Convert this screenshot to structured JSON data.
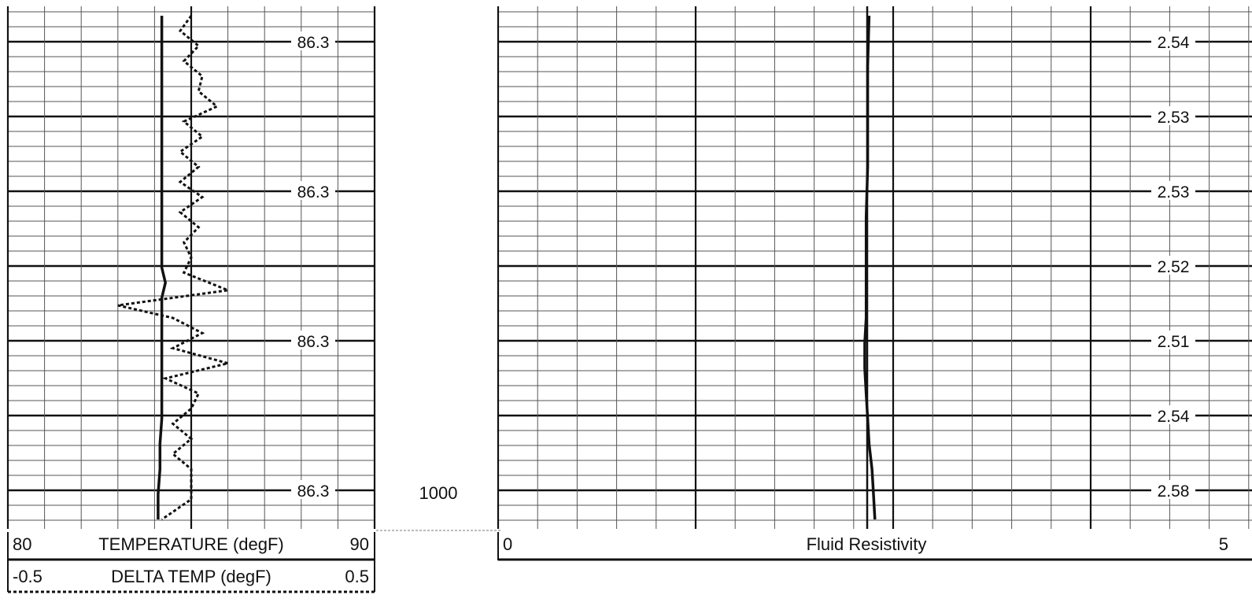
{
  "depth_label": "1000",
  "chart_data": [
    {
      "type": "line",
      "track": "left",
      "scales": [
        {
          "name": "TEMPERATURE (degF)",
          "min": 80,
          "max": 90,
          "line_style": "solid"
        },
        {
          "name": "DELTA TEMP (degF)",
          "min": -0.5,
          "max": 0.5,
          "line_style": "dotted"
        }
      ],
      "header": {
        "row1": {
          "left": "80",
          "label": "TEMPERATURE (degF)",
          "right": "90"
        },
        "row2": {
          "left": "-0.5",
          "label": "DELTA TEMP (degF)",
          "right": "0.5"
        }
      },
      "annotations": [
        "86.3",
        "86.3",
        "86.3",
        "86.3"
      ],
      "series": [
        {
          "name": "TEMPERATURE (degF)",
          "depth_fraction": [
            0,
            0.1,
            0.2,
            0.3,
            0.4,
            0.5,
            0.53,
            0.56,
            0.6,
            0.65,
            0.7,
            0.75,
            0.8,
            0.85,
            0.9,
            0.95,
            1
          ],
          "values": [
            86.3,
            86.3,
            86.3,
            86.3,
            86.3,
            86.3,
            86.4,
            86.3,
            86.3,
            86.3,
            86.3,
            86.3,
            86.3,
            86.25,
            86.25,
            86.2,
            86.2
          ]
        },
        {
          "name": "DELTA TEMP (degF)",
          "depth_fraction": [
            0,
            0.03,
            0.06,
            0.09,
            0.12,
            0.15,
            0.18,
            0.21,
            0.24,
            0.27,
            0.3,
            0.33,
            0.36,
            0.39,
            0.42,
            0.45,
            0.48,
            0.51,
            0.545,
            0.575,
            0.6,
            0.63,
            0.66,
            0.69,
            0.72,
            0.75,
            0.78,
            0.81,
            0.84,
            0.87,
            0.9,
            0.93,
            0.96,
            1
          ],
          "values": [
            0,
            -0.03,
            0.02,
            -0.02,
            0.03,
            0.02,
            0.07,
            -0.02,
            0.03,
            -0.03,
            0.02,
            -0.03,
            0.03,
            -0.03,
            0.02,
            -0.02,
            0.0,
            -0.02,
            0.1,
            -0.2,
            -0.05,
            0.03,
            -0.05,
            0.1,
            -0.07,
            0.02,
            0.0,
            -0.05,
            0.0,
            -0.05,
            0.0,
            0.0,
            0.0,
            -0.08
          ]
        }
      ]
    },
    {
      "type": "line",
      "track": "right",
      "scales": [
        {
          "name": "Fluid Resistivity",
          "min": 0,
          "max": 5,
          "line_style": "solid"
        }
      ],
      "header": {
        "left": "0",
        "label": "Fluid Resistivity",
        "right": "5"
      },
      "annotations": [
        "2.54",
        "2.53",
        "2.53",
        "2.52",
        "2.51",
        "2.54",
        "2.58"
      ],
      "series": [
        {
          "name": "Fluid Resistivity",
          "depth_fraction": [
            0,
            0.1,
            0.2,
            0.3,
            0.4,
            0.5,
            0.6,
            0.65,
            0.7,
            0.75,
            0.8,
            0.85,
            0.9,
            0.95,
            1
          ],
          "values": [
            2.54,
            2.53,
            2.53,
            2.53,
            2.52,
            2.52,
            2.52,
            2.51,
            2.51,
            2.52,
            2.53,
            2.54,
            2.56,
            2.57,
            2.58
          ]
        }
      ]
    }
  ]
}
